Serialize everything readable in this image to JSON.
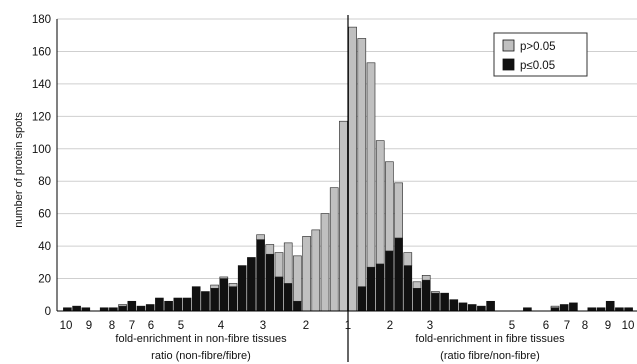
{
  "chart_data": {
    "type": "bar",
    "stacked": true,
    "ylabel": "number of protein spots",
    "ylim": [
      0,
      180
    ],
    "yticks": [
      0,
      20,
      40,
      60,
      80,
      100,
      120,
      140,
      160,
      180
    ],
    "grid": "horizontal",
    "legend_position": "top-right",
    "xlabel_left": [
      "fold-enrichment in non-fibre tissues",
      "ratio (non-fibre/fibre)"
    ],
    "xlabel_right": [
      "fold-enrichment in fibre tissues",
      "(ratio fibre/non-fibre)"
    ],
    "xticks_left": [
      "10",
      "9",
      "8",
      "7",
      "6",
      "5",
      "4",
      "3",
      "2",
      "1"
    ],
    "xticks_right": [
      "2",
      "3",
      "5",
      "6",
      "7",
      "8",
      "9",
      "10"
    ],
    "series": [
      {
        "name": "p>0.05",
        "color": "#c0c0c0",
        "left_values": [
          0,
          0,
          0,
          0,
          0,
          0,
          1,
          0,
          0,
          0,
          0,
          0,
          0,
          0,
          0,
          0,
          2,
          1,
          2,
          0,
          0,
          3,
          6,
          15,
          25,
          28,
          46,
          50,
          60,
          76,
          117
        ],
        "right_values": [
          175,
          153,
          126,
          76,
          55,
          34,
          8,
          4,
          3,
          1,
          0,
          0,
          0,
          0,
          0,
          0,
          0,
          0,
          0,
          0,
          0,
          0,
          1,
          0,
          0,
          0,
          0,
          0,
          0,
          0,
          0
        ]
      },
      {
        "name": "p≤0.05",
        "color": "#111111",
        "left_values": [
          2,
          3,
          2,
          0,
          2,
          2,
          3,
          6,
          3,
          4,
          8,
          6,
          8,
          8,
          15,
          12,
          14,
          20,
          15,
          28,
          33,
          44,
          35,
          21,
          17,
          6,
          0,
          0,
          0,
          0,
          0
        ],
        "right_values": [
          0,
          15,
          27,
          29,
          37,
          45,
          28,
          14,
          19,
          11,
          11,
          7,
          5,
          4,
          3,
          6,
          0,
          0,
          0,
          2,
          0,
          0,
          2,
          4,
          5,
          0,
          2,
          2,
          6,
          2,
          2
        ]
      }
    ]
  }
}
